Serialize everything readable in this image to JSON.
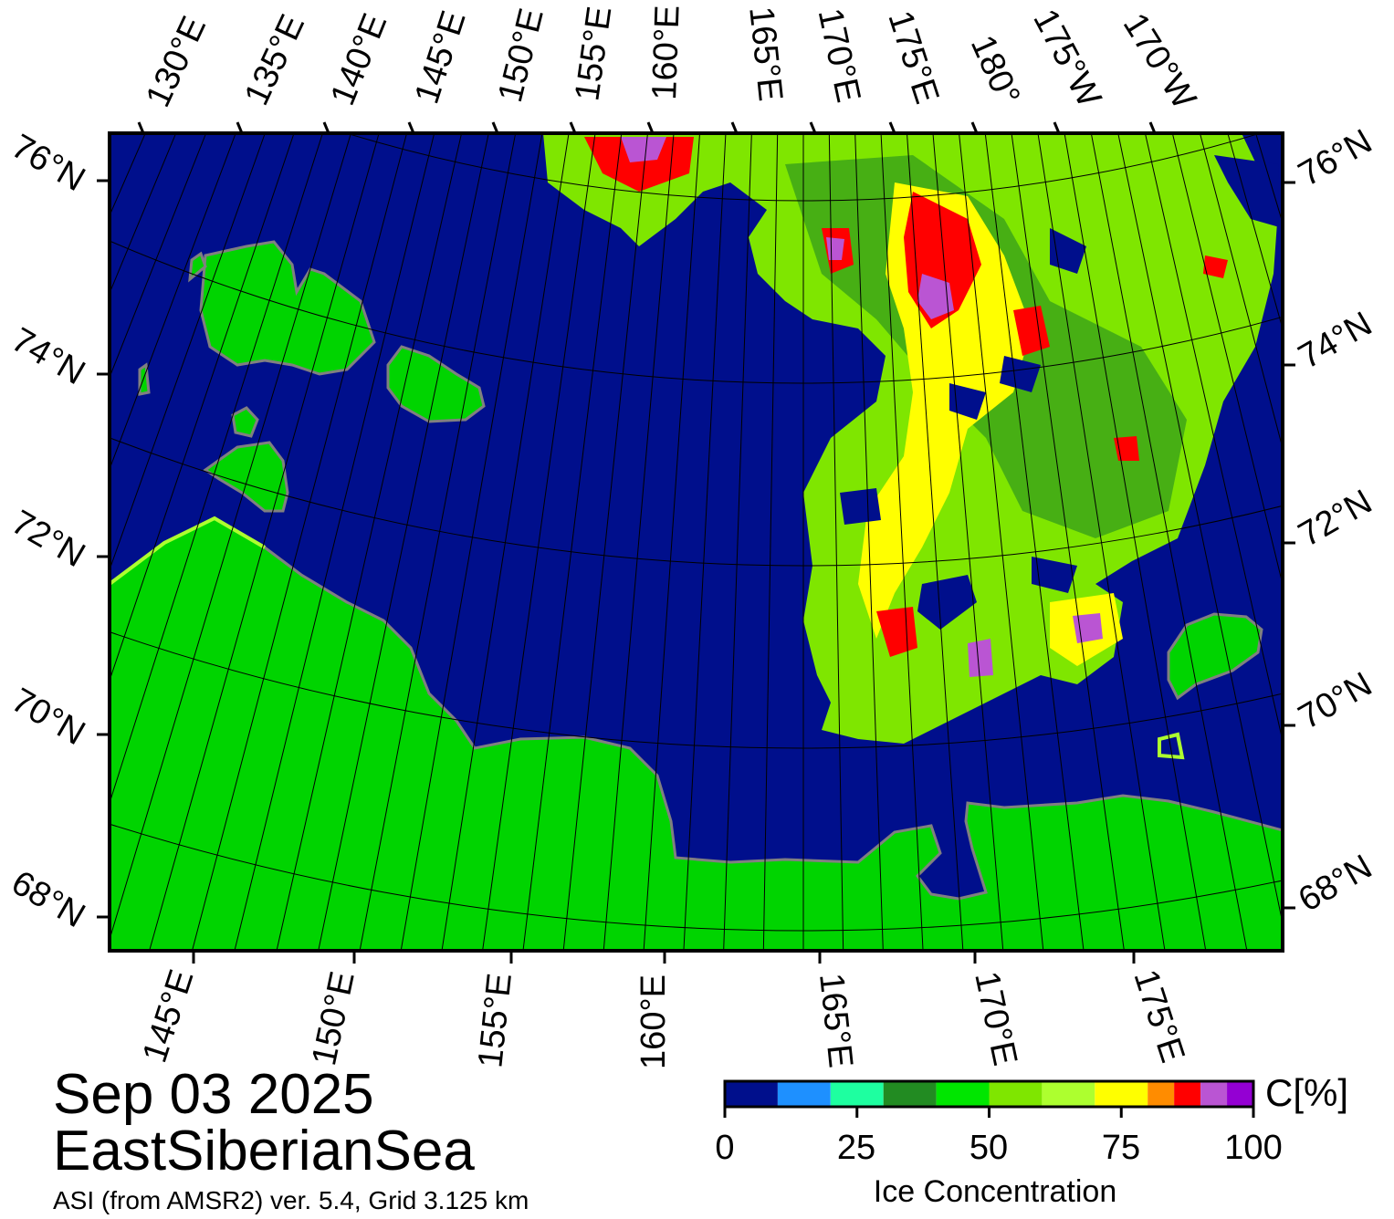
{
  "map": {
    "date": "Sep 03 2025",
    "region": "EastSiberianSea",
    "source": "ASI (from AMSR2) ver. 5.4,  Grid 3.125 km",
    "top_lon_labels": [
      "130°E",
      "135°E",
      "140°E",
      "145°E",
      "150°E",
      "155°E",
      "160°E",
      "165°E",
      "170°E",
      "175°E",
      "180°",
      "175°W",
      "170°W"
    ],
    "bottom_lon_labels": [
      "145°E",
      "150°E",
      "155°E",
      "160°E",
      "165°E",
      "170°E",
      "175°E"
    ],
    "left_lat_labels": [
      "76°N",
      "74°N",
      "72°N",
      "70°N",
      "68°N"
    ],
    "right_lat_labels": [
      "76°N",
      "74°N",
      "72°N",
      "70°N",
      "68°N"
    ],
    "colors": {
      "ocean": "#000f8c",
      "land": "#00d400",
      "coast": "#808080"
    }
  },
  "colorbar": {
    "unit": "C[%]",
    "title": "Ice Concentration",
    "tick_labels": [
      "0",
      "25",
      "50",
      "75",
      "100"
    ],
    "colors": [
      "#000f8c",
      "#1e90ff",
      "#1effa0",
      "#228b22",
      "#00e600",
      "#7fe600",
      "#adff2f",
      "#ffff00",
      "#ff8c00",
      "#ff0000",
      "#ba55d3",
      "#9400d3"
    ]
  }
}
